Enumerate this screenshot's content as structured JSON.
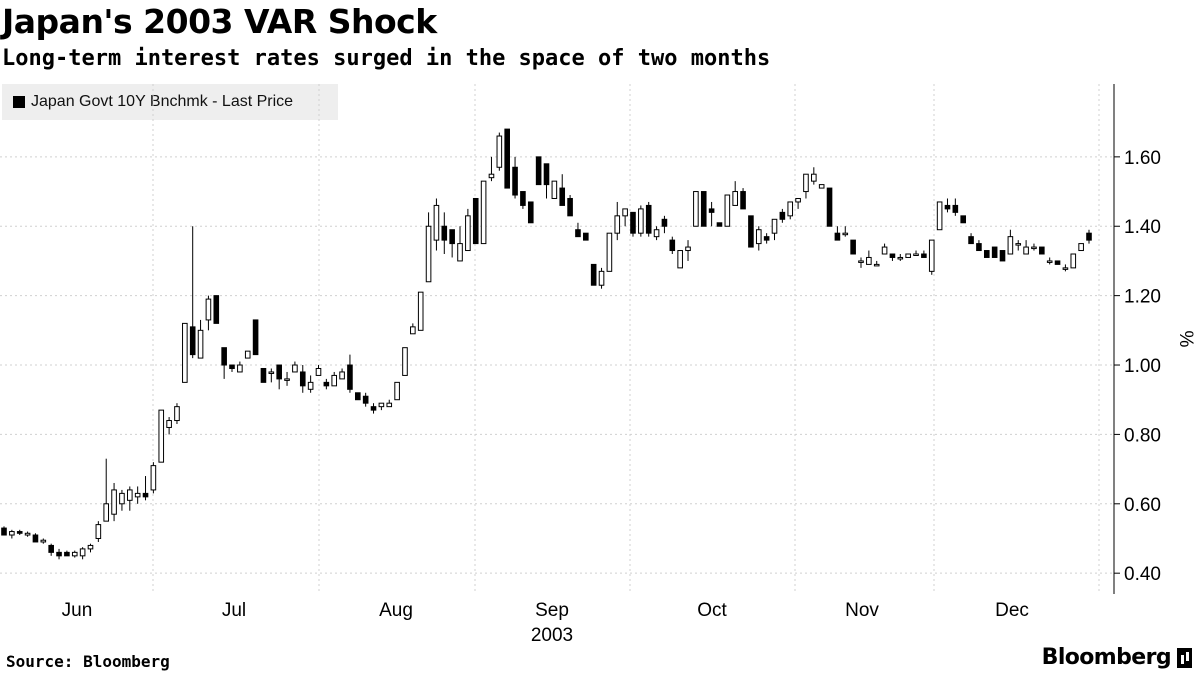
{
  "header": {
    "title": "Japan's 2003 VAR Shock",
    "subtitle": "Long-term interest rates surged in the space of two months"
  },
  "footer": {
    "source": "Source: Bloomberg",
    "brand": "Bloomberg"
  },
  "colors": {
    "candle": "#000000",
    "grid": "#d0d0d0",
    "legend_bg": "#eeeeee"
  },
  "chart_data": {
    "type": "candlestick",
    "title": "Japan's 2003 VAR Shock",
    "subtitle": "Long-term interest rates surged in the space of two months",
    "legend": [
      "Japan Govt 10Y Bnchmk - Last Price"
    ],
    "legend_position": "top-left",
    "y_axis": {
      "label": "%",
      "side": "right",
      "ylim": [
        0.34,
        1.81
      ],
      "ticks": [
        "0.40",
        "0.60",
        "0.80",
        "1.00",
        "1.20",
        "1.40",
        "1.60"
      ]
    },
    "x_axis": {
      "months": [
        "Jun",
        "Jul",
        "Aug",
        "Sep",
        "Oct",
        "Nov",
        "Dec"
      ],
      "year": "2003"
    },
    "grid": true,
    "series": [
      {
        "name": "Japan Govt 10Y Bnchmk - Last Price",
        "columns": [
          "open",
          "high",
          "low",
          "close"
        ],
        "ohlc": [
          [
            0.53,
            0.535,
            0.51,
            0.51
          ],
          [
            0.51,
            0.525,
            0.5,
            0.52
          ],
          [
            0.52,
            0.525,
            0.51,
            0.515
          ],
          [
            0.51,
            0.52,
            0.505,
            0.515
          ],
          [
            0.51,
            0.515,
            0.49,
            0.49
          ],
          [
            0.49,
            0.5,
            0.485,
            0.495
          ],
          [
            0.48,
            0.485,
            0.45,
            0.46
          ],
          [
            0.46,
            0.47,
            0.44,
            0.45
          ],
          [
            0.46,
            0.465,
            0.45,
            0.45
          ],
          [
            0.45,
            0.465,
            0.445,
            0.46
          ],
          [
            0.45,
            0.475,
            0.44,
            0.47
          ],
          [
            0.47,
            0.485,
            0.46,
            0.48
          ],
          [
            0.5,
            0.55,
            0.49,
            0.54
          ],
          [
            0.55,
            0.73,
            0.55,
            0.6
          ],
          [
            0.57,
            0.66,
            0.55,
            0.64
          ],
          [
            0.6,
            0.64,
            0.58,
            0.63
          ],
          [
            0.61,
            0.65,
            0.58,
            0.64
          ],
          [
            0.62,
            0.65,
            0.6,
            0.63
          ],
          [
            0.63,
            0.68,
            0.61,
            0.62
          ],
          [
            0.64,
            0.72,
            0.63,
            0.71
          ],
          [
            0.72,
            0.87,
            0.72,
            0.87
          ],
          [
            0.82,
            0.85,
            0.8,
            0.84
          ],
          [
            0.84,
            0.89,
            0.83,
            0.88
          ],
          [
            0.95,
            1.12,
            0.95,
            1.12
          ],
          [
            1.11,
            1.4,
            1.02,
            1.03
          ],
          [
            1.02,
            1.13,
            1.02,
            1.1
          ],
          [
            1.13,
            1.2,
            1.1,
            1.19
          ],
          [
            1.2,
            1.2,
            1.12,
            1.12
          ],
          [
            1.05,
            1.05,
            0.96,
            1.0
          ],
          [
            1.0,
            1.0,
            0.98,
            0.99
          ],
          [
            0.98,
            1.01,
            0.98,
            1.0
          ],
          [
            1.02,
            1.04,
            1.02,
            1.04
          ],
          [
            1.13,
            1.13,
            1.03,
            1.03
          ],
          [
            0.99,
            0.99,
            0.95,
            0.95
          ],
          [
            0.98,
            0.99,
            0.95,
            0.98
          ],
          [
            1.0,
            1.0,
            0.93,
            0.96
          ],
          [
            0.96,
            0.98,
            0.94,
            0.96
          ],
          [
            0.98,
            1.01,
            0.98,
            1.0
          ],
          [
            0.98,
            1.0,
            0.92,
            0.94
          ],
          [
            0.93,
            0.97,
            0.92,
            0.95
          ],
          [
            0.97,
            1.0,
            0.97,
            0.99
          ],
          [
            0.95,
            0.96,
            0.93,
            0.94
          ],
          [
            0.94,
            0.98,
            0.95,
            0.97
          ],
          [
            0.96,
            0.99,
            0.96,
            0.98
          ],
          [
            1.0,
            1.03,
            0.92,
            0.93
          ],
          [
            0.92,
            0.92,
            0.9,
            0.9
          ],
          [
            0.91,
            0.92,
            0.88,
            0.89
          ],
          [
            0.88,
            0.89,
            0.86,
            0.87
          ],
          [
            0.88,
            0.89,
            0.87,
            0.89
          ],
          [
            0.88,
            0.9,
            0.88,
            0.89
          ],
          [
            0.9,
            0.95,
            0.9,
            0.95
          ],
          [
            0.97,
            1.05,
            0.97,
            1.05
          ],
          [
            1.09,
            1.12,
            1.09,
            1.11
          ],
          [
            1.1,
            1.21,
            1.1,
            1.21
          ],
          [
            1.24,
            1.44,
            1.24,
            1.4
          ],
          [
            1.36,
            1.48,
            1.33,
            1.46
          ],
          [
            1.4,
            1.44,
            1.32,
            1.36
          ],
          [
            1.39,
            1.39,
            1.31,
            1.35
          ],
          [
            1.3,
            1.4,
            1.3,
            1.35
          ],
          [
            1.33,
            1.45,
            1.33,
            1.43
          ],
          [
            1.48,
            1.48,
            1.35,
            1.35
          ],
          [
            1.35,
            1.53,
            1.35,
            1.53
          ],
          [
            1.54,
            1.6,
            1.53,
            1.55
          ],
          [
            1.57,
            1.67,
            1.56,
            1.66
          ],
          [
            1.68,
            1.68,
            1.51,
            1.51
          ],
          [
            1.57,
            1.6,
            1.48,
            1.49
          ],
          [
            1.5,
            1.5,
            1.45,
            1.46
          ],
          [
            1.47,
            1.47,
            1.41,
            1.41
          ],
          [
            1.6,
            1.6,
            1.52,
            1.52
          ],
          [
            1.58,
            1.58,
            1.48,
            1.52
          ],
          [
            1.48,
            1.53,
            1.48,
            1.53
          ],
          [
            1.51,
            1.55,
            1.46,
            1.46
          ],
          [
            1.48,
            1.49,
            1.43,
            1.43
          ],
          [
            1.39,
            1.41,
            1.37,
            1.37
          ],
          [
            1.38,
            1.38,
            1.36,
            1.36
          ],
          [
            1.29,
            1.29,
            1.23,
            1.23
          ],
          [
            1.23,
            1.28,
            1.22,
            1.27
          ],
          [
            1.27,
            1.38,
            1.27,
            1.38
          ],
          [
            1.38,
            1.47,
            1.36,
            1.43
          ],
          [
            1.43,
            1.45,
            1.4,
            1.45
          ],
          [
            1.44,
            1.44,
            1.37,
            1.38
          ],
          [
            1.38,
            1.46,
            1.37,
            1.45
          ],
          [
            1.46,
            1.47,
            1.37,
            1.38
          ],
          [
            1.37,
            1.4,
            1.36,
            1.39
          ],
          [
            1.42,
            1.43,
            1.38,
            1.4
          ],
          [
            1.36,
            1.37,
            1.32,
            1.33
          ],
          [
            1.28,
            1.33,
            1.28,
            1.33
          ],
          [
            1.33,
            1.36,
            1.3,
            1.34
          ],
          [
            1.4,
            1.5,
            1.4,
            1.5
          ],
          [
            1.5,
            1.5,
            1.4,
            1.4
          ],
          [
            1.45,
            1.47,
            1.4,
            1.44
          ],
          [
            1.41,
            1.41,
            1.4,
            1.4
          ],
          [
            1.4,
            1.49,
            1.4,
            1.49
          ],
          [
            1.46,
            1.53,
            1.46,
            1.5
          ],
          [
            1.5,
            1.51,
            1.45,
            1.45
          ],
          [
            1.43,
            1.43,
            1.34,
            1.34
          ],
          [
            1.35,
            1.4,
            1.33,
            1.39
          ],
          [
            1.37,
            1.38,
            1.35,
            1.36
          ],
          [
            1.38,
            1.42,
            1.36,
            1.42
          ],
          [
            1.44,
            1.45,
            1.41,
            1.42
          ],
          [
            1.43,
            1.47,
            1.42,
            1.47
          ],
          [
            1.47,
            1.48,
            1.45,
            1.48
          ],
          [
            1.5,
            1.55,
            1.48,
            1.55
          ],
          [
            1.53,
            1.57,
            1.52,
            1.55
          ],
          [
            1.51,
            1.52,
            1.51,
            1.52
          ],
          [
            1.51,
            1.51,
            1.4,
            1.4
          ],
          [
            1.38,
            1.4,
            1.36,
            1.36
          ],
          [
            1.38,
            1.4,
            1.37,
            1.38
          ],
          [
            1.36,
            1.36,
            1.32,
            1.32
          ],
          [
            1.3,
            1.31,
            1.28,
            1.3
          ],
          [
            1.29,
            1.33,
            1.29,
            1.31
          ],
          [
            1.29,
            1.3,
            1.29,
            1.29
          ],
          [
            1.32,
            1.35,
            1.32,
            1.34
          ],
          [
            1.32,
            1.32,
            1.3,
            1.31
          ],
          [
            1.31,
            1.32,
            1.3,
            1.31
          ],
          [
            1.31,
            1.32,
            1.31,
            1.32
          ],
          [
            1.32,
            1.33,
            1.32,
            1.32
          ],
          [
            1.32,
            1.33,
            1.31,
            1.31
          ],
          [
            1.27,
            1.36,
            1.26,
            1.36
          ],
          [
            1.39,
            1.47,
            1.39,
            1.47
          ],
          [
            1.46,
            1.48,
            1.44,
            1.45
          ],
          [
            1.46,
            1.48,
            1.43,
            1.44
          ],
          [
            1.43,
            1.43,
            1.41,
            1.41
          ],
          [
            1.37,
            1.38,
            1.35,
            1.35
          ],
          [
            1.35,
            1.36,
            1.33,
            1.33
          ],
          [
            1.33,
            1.33,
            1.31,
            1.31
          ],
          [
            1.34,
            1.34,
            1.31,
            1.31
          ],
          [
            1.33,
            1.33,
            1.3,
            1.3
          ],
          [
            1.32,
            1.39,
            1.32,
            1.37
          ],
          [
            1.35,
            1.36,
            1.33,
            1.35
          ],
          [
            1.32,
            1.36,
            1.32,
            1.34
          ],
          [
            1.34,
            1.35,
            1.33,
            1.34
          ],
          [
            1.34,
            1.34,
            1.32,
            1.32
          ],
          [
            1.3,
            1.31,
            1.29,
            1.3
          ],
          [
            1.3,
            1.3,
            1.29,
            1.29
          ],
          [
            1.28,
            1.29,
            1.27,
            1.28
          ],
          [
            1.28,
            1.32,
            1.28,
            1.32
          ],
          [
            1.33,
            1.35,
            1.33,
            1.35
          ],
          [
            1.38,
            1.39,
            1.35,
            1.36
          ]
        ]
      }
    ]
  }
}
